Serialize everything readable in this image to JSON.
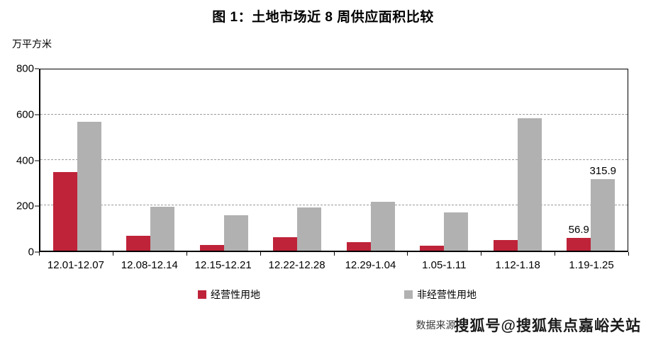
{
  "chart_data": {
    "type": "bar",
    "title": "图 1：土地市场近 8 周供应面积比较",
    "unit_label": "万平方米",
    "categories": [
      "12.01-12.07",
      "12.08-12.14",
      "12.15-12.21",
      "12.22-12.28",
      "12.29-1.04",
      "1.05-1.11",
      "1.12-1.18",
      "1.19-1.25"
    ],
    "series": [
      {
        "name": "经营性用地",
        "color": "#bf2339",
        "values": [
          347,
          65,
          25,
          58,
          37,
          21,
          46,
          56.9
        ],
        "labels": [
          null,
          null,
          null,
          null,
          null,
          null,
          null,
          "56.9"
        ]
      },
      {
        "name": "非经营性用地",
        "color": "#b1b1b1",
        "values": [
          570,
          193,
          155,
          190,
          215,
          170,
          585,
          315.9
        ],
        "labels": [
          null,
          null,
          null,
          null,
          null,
          null,
          null,
          "315.9"
        ]
      }
    ],
    "ylim": [
      0,
      800
    ],
    "yticks": [
      0,
      200,
      400,
      600,
      800
    ],
    "grid": "horizontal-dashed",
    "legend_position": "bottom"
  },
  "footer": {
    "source_prefix": "数据来源",
    "watermark": "搜狐号@搜狐焦点嘉峪关站",
    "source_suffix": "）"
  }
}
